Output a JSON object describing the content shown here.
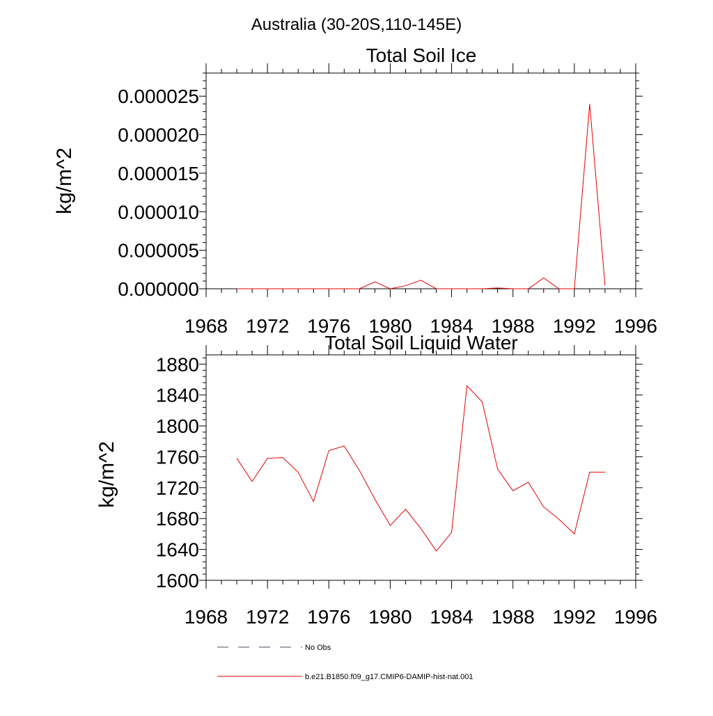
{
  "figure": {
    "title": "Australia (30-20S,110-145E)"
  },
  "legend": {
    "items": [
      {
        "label": "No Obs",
        "style": "dashed",
        "color": "#4a4a6a"
      },
      {
        "label": "b.e21.B1850.f09_g17.CMIP6-DAMIP-hist-nat.001",
        "style": "solid",
        "color": "#e00000"
      }
    ]
  },
  "chart_data": [
    {
      "type": "line",
      "title": "Total Soil Ice",
      "xlabel": "",
      "ylabel": "kg/m^2",
      "xlim": [
        1968,
        1996
      ],
      "ylim": [
        0,
        2.8e-05
      ],
      "xticks": [
        1968,
        1972,
        1976,
        1980,
        1984,
        1988,
        1992,
        1996
      ],
      "xtick_labels": [
        "1968",
        "1972",
        "1976",
        "1980",
        "1984",
        "1988",
        "1992",
        "1996"
      ],
      "yticks": [
        0,
        5e-06,
        1e-05,
        1.5e-05,
        2e-05,
        2.5e-05
      ],
      "ytick_labels": [
        "0.000000",
        "0.000005",
        "0.000010",
        "0.000015",
        "0.000020",
        "0.000025"
      ],
      "grid": false,
      "series": [
        {
          "color": "#e00000",
          "x": [
            1970,
            1971,
            1972,
            1973,
            1974,
            1975,
            1976,
            1977,
            1978,
            1979,
            1980,
            1981,
            1982,
            1983,
            1984,
            1985,
            1986,
            1987,
            1988,
            1989,
            1990,
            1991,
            1992,
            1993,
            1994
          ],
          "y": [
            0,
            0,
            0,
            0,
            0,
            0,
            0,
            0,
            0,
            9e-07,
            0,
            4e-07,
            1.1e-06,
            0,
            0,
            0,
            0,
            1e-07,
            0,
            0,
            1.4e-06,
            0,
            0,
            2.4e-05,
            4e-07
          ]
        }
      ]
    },
    {
      "type": "line",
      "title": "Total Soil Liquid Water",
      "xlabel": "",
      "ylabel": "kg/m^2",
      "xlim": [
        1968,
        1996
      ],
      "ylim": [
        1600,
        1892
      ],
      "xticks": [
        1968,
        1972,
        1976,
        1980,
        1984,
        1988,
        1992,
        1996
      ],
      "xtick_labels": [
        "1968",
        "1972",
        "1976",
        "1980",
        "1984",
        "1988",
        "1992",
        "1996"
      ],
      "yticks": [
        1600,
        1640,
        1680,
        1720,
        1760,
        1800,
        1840,
        1880
      ],
      "ytick_labels": [
        "1600",
        "1640",
        "1680",
        "1720",
        "1760",
        "1800",
        "1840",
        "1880"
      ],
      "grid": false,
      "series": [
        {
          "color": "#e00000",
          "x": [
            1970,
            1971,
            1972,
            1973,
            1974,
            1975,
            1976,
            1977,
            1978,
            1979,
            1980,
            1981,
            1982,
            1983,
            1984,
            1985,
            1986,
            1987,
            1988,
            1989,
            1990,
            1991,
            1992,
            1993,
            1994
          ],
          "y": [
            1758,
            1728,
            1758,
            1759,
            1740,
            1702,
            1768,
            1774,
            1742,
            1705,
            1671,
            1692,
            1667,
            1638,
            1662,
            1852,
            1831,
            1744,
            1716,
            1727,
            1695,
            1679,
            1660,
            1740,
            1740
          ]
        }
      ]
    }
  ]
}
